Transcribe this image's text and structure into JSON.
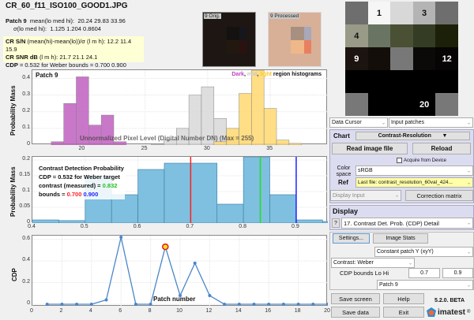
{
  "header": {
    "title": "CR_60_f11_ISO100_GOOD1.JPG",
    "patch_label": "Patch 9",
    "mean_label": "mean(lo med hi):",
    "mean_values": "20.24 29.83 33.96",
    "sigma_label": "σ(lo med hi):",
    "sigma_values": "1.125 1.204 0.8604"
  },
  "highlight": {
    "line1_bold": "CR S/N",
    "line1_rest": "(mean(hi)-mean(lo))/σ (l m h):  12.2 11.4 15.9",
    "line2_bold": "CR SNR dB",
    "line2_rest": "(l m h):  21.7 21.1 24.1",
    "line3_bold": "CDP",
    "line3_rest": "= 0.532 for Weber bounds = 0.700 0.900"
  },
  "thumbnails": {
    "orig_label": "9 Orig.",
    "processed_label": "9 Processed"
  },
  "patch_grid": {
    "labels": [
      "",
      "1",
      "",
      "3",
      "",
      "4",
      "",
      "",
      "",
      "",
      "9",
      "",
      "",
      "",
      "12",
      "",
      "",
      "",
      "",
      "",
      "",
      "",
      "",
      "20",
      ""
    ],
    "colors": [
      "#6e6e6e",
      "#f6f6f6",
      "#d8d8d8",
      "#b4b4b4",
      "#6e6e6e",
      "#9a9a88",
      "#6a7462",
      "#4a5034",
      "#343c24",
      "#1c2008",
      "#1c1410",
      "#140e0a",
      "#787878",
      "#0c0a08",
      "#060404",
      "#000000",
      "#000000",
      "#000000",
      "#000000",
      "#000000",
      "#787878",
      "#000000",
      "#000000",
      "#000000",
      "#787878"
    ]
  },
  "controls": {
    "data_cursor": "Data Cursor",
    "input_patches": "Input patches",
    "chart_label": "Chart",
    "chart_value": "Contrast-Resolution",
    "read_image": "Read image file",
    "reload": "Reload",
    "acquire": "Acquire from Device",
    "color_space_label": "Color space",
    "color_space_value": "sRGB",
    "ref_label": "Ref",
    "ref_value": "Last file: contrast_resolution_60val_424...",
    "display_input": "Display Input",
    "correction_matrix": "Correction matrix",
    "display_label": "Display",
    "display_help": "?",
    "display_value": "17. Contrast Det. Prob. (CDP) Detail",
    "settings": "Settings...",
    "image_stats": "Image Stats",
    "constant_patch": "Constant patch Y (xyY)",
    "contrast": "Contrast: Weber",
    "cdp_bounds_label": "CDP bounds Lo Hi",
    "cdp_lo": "0.7",
    "cdp_hi": "0.9",
    "patch_select": "Patch  9",
    "save_screen": "Save screen",
    "help": "Help",
    "save_data": "Save data",
    "exit": "Exit",
    "version": "5.2.0. BETA",
    "brand": "imatest",
    "brand_reg": "®"
  },
  "chart_data": [
    {
      "type": "bar",
      "title": "Patch 9",
      "legend": [
        "Dark",
        "mid",
        "light"
      ],
      "legend_suffix": "region histograms",
      "xlabel": "Unnormalized Pixel Level (Digital Number DN)  (Max = 255)",
      "ylabel": "Probability Mass",
      "xlim": [
        16,
        39.6
      ],
      "ylim": [
        0,
        0.45
      ],
      "xticks": [
        "20",
        "25",
        "30",
        "35"
      ],
      "yticks": [
        "0",
        "0.1",
        "0.2",
        "0.3",
        "0.4"
      ],
      "series": [
        {
          "name": "Dark",
          "color": "#c060c0",
          "bins": [
            18,
            19,
            20,
            21,
            22,
            23
          ],
          "values": [
            0.02,
            0.25,
            0.41,
            0.12,
            0.18,
            0.02
          ]
        },
        {
          "name": "mid",
          "color": "#d8d8d8",
          "bins": [
            26,
            27,
            28,
            29,
            30,
            31,
            32
          ],
          "values": [
            0.005,
            0.03,
            0.1,
            0.3,
            0.35,
            0.16,
            0.05
          ]
        },
        {
          "name": "light",
          "color": "#ffd870",
          "bins": [
            31,
            32,
            33,
            34,
            35,
            36,
            37
          ],
          "values": [
            0.02,
            0.1,
            0.31,
            0.5,
            0.22,
            0.03,
            0.01
          ]
        }
      ]
    },
    {
      "type": "bar",
      "annotation": [
        "Contrast Detection Probability",
        "CDP = 0.532 for Weber target",
        "contrast (measured) = ",
        "0.832",
        "bounds = ",
        "0.700",
        "0.900"
      ],
      "ylabel": "Probability Mass",
      "xlabel": "Contrast (Weber)",
      "xlim": [
        0.4,
        0.96
      ],
      "ylim": [
        0,
        0.21
      ],
      "xticks": [
        "0.4",
        "0.5",
        "0.6",
        "0.7",
        "0.8",
        "0.9"
      ],
      "yticks": [
        "0",
        "0.05",
        "0.1",
        "0.15",
        "0.2"
      ],
      "bin_edges": [
        0.4,
        0.45,
        0.5,
        0.55,
        0.6,
        0.65,
        0.7,
        0.75,
        0.8,
        0.85,
        0.9,
        0.95
      ],
      "values": [
        0.01,
        0.008,
        0.15,
        0.09,
        0.17,
        0.19,
        0.19,
        0.06,
        0.21,
        0.09,
        0.01,
        0.005
      ],
      "vlines": [
        {
          "x": 0.7,
          "color": "#ff2020"
        },
        {
          "x": 0.832,
          "color": "#20e020"
        },
        {
          "x": 0.9,
          "color": "#2020ff"
        }
      ]
    },
    {
      "type": "line",
      "xlabel": "Patch number",
      "ylabel": "CDP",
      "xlim": [
        0,
        20
      ],
      "ylim": [
        0,
        0.62
      ],
      "xticks": [
        "0",
        "2",
        "4",
        "6",
        "8",
        "10",
        "12",
        "14",
        "16",
        "18",
        "20"
      ],
      "yticks": [
        "0",
        "0.2",
        "0.4",
        "0.6"
      ],
      "x": [
        1,
        2,
        3,
        4,
        5,
        6,
        7,
        8,
        9,
        10,
        11,
        12,
        13,
        14,
        15,
        16,
        17,
        18,
        19,
        20
      ],
      "values": [
        0,
        0,
        0,
        0,
        0.04,
        0.62,
        0,
        0,
        0.532,
        0.08,
        0.38,
        0.08,
        0,
        0,
        0,
        0,
        0,
        0,
        0,
        0
      ],
      "highlight_point": {
        "x": 9,
        "y": 0.532
      }
    }
  ]
}
